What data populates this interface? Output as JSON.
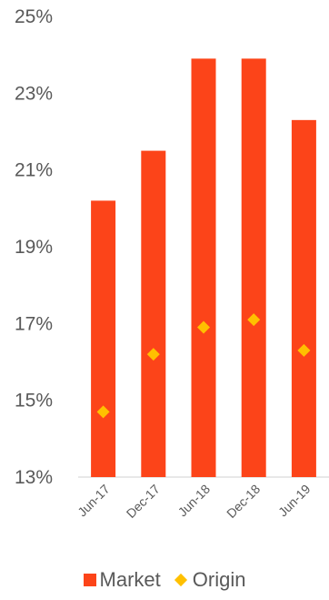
{
  "chart_data": {
    "type": "bar",
    "categories": [
      "Jun-17",
      "Dec-17",
      "Jun-18",
      "Dec-18",
      "Jun-19"
    ],
    "series": [
      {
        "name": "Market",
        "type": "bar",
        "color": "#FC4419",
        "values": [
          20.2,
          21.5,
          23.9,
          23.9,
          22.3
        ]
      },
      {
        "name": "Origin",
        "type": "scatter",
        "marker": "diamond",
        "color": "#FFC000",
        "values": [
          14.7,
          16.2,
          16.9,
          17.1,
          16.3
        ]
      }
    ],
    "y_ticks": [
      "13%",
      "15%",
      "17%",
      "19%",
      "21%",
      "23%",
      "25%"
    ],
    "ylim": [
      13,
      25
    ],
    "grid": false,
    "legend_position": "bottom"
  }
}
